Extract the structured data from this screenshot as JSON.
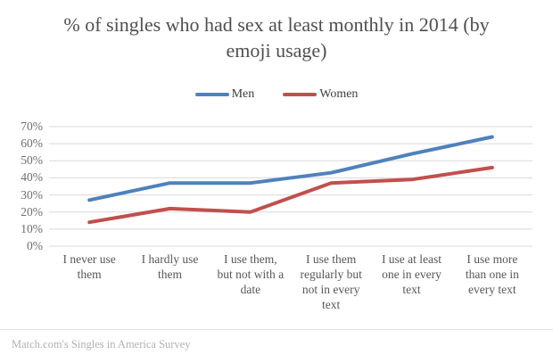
{
  "chart": {
    "title": "% of singles who had sex at least monthly in 2014 (by emoji usage)",
    "source_note": "Match.com's Singles in America Survey"
  },
  "chart_data": {
    "type": "line",
    "title": "% of singles who had sex at least monthly in 2014 (by emoji usage)",
    "categories": [
      "I never use them",
      "I hardly use them",
      "I use them, but not with a date",
      "I use them regularly but not in every text",
      "I use at least one in every text",
      "I use more than one in every text"
    ],
    "series": [
      {
        "name": "Men",
        "color": "#4F81BD",
        "values": [
          27,
          37,
          37,
          43,
          54,
          64
        ]
      },
      {
        "name": "Women",
        "color": "#C0504D",
        "values": [
          14,
          22,
          20,
          37,
          39,
          46
        ]
      }
    ],
    "xlabel": "",
    "ylabel": "",
    "y_ticks": [
      "0%",
      "10%",
      "20%",
      "30%",
      "40%",
      "50%",
      "60%",
      "70%"
    ],
    "ylim": [
      0,
      70
    ],
    "grid": true,
    "gridline_color": "#d9d9d9",
    "legend_position": "top",
    "source": "Match.com's Singles in America Survey"
  }
}
